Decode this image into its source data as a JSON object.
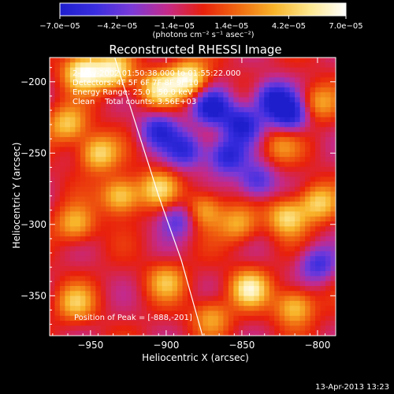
{
  "chart_data": {
    "type": "heatmap",
    "title": "Reconstructed RHESSI Image",
    "xlabel": "Heliocentric X (arcsec)",
    "ylabel": "Heliocentric Y (arcsec)",
    "xlim": [
      -977,
      -788
    ],
    "ylim": [
      -378,
      -183
    ],
    "x_ticks": [
      -950,
      -900,
      -850,
      -800
    ],
    "x_tick_labels": [
      "−950",
      "−900",
      "−850",
      "−800"
    ],
    "y_ticks": [
      -350,
      -300,
      -250,
      -200
    ],
    "y_tick_labels": [
      "−350",
      "−300",
      "−250",
      "−200"
    ],
    "colorbar": {
      "min": -7e-05,
      "max": 7e-05,
      "tick_values": [
        -7e-05,
        -4.2e-05,
        -1.4e-05,
        1.4e-05,
        4.2e-05,
        7e-05
      ],
      "tick_labels": [
        "−7.0e−05",
        "−4.2e−05",
        "−1.4e−05",
        "1.4e−05",
        "4.2e−05",
        "7.0e−05"
      ],
      "unit_label": "(photons cm⁻² s⁻¹ asec⁻²)",
      "colors": [
        "#1e1ecc",
        "#3a2ee0",
        "#7a3ad8",
        "#c42a8a",
        "#e8200c",
        "#f06a10",
        "#f8b42a",
        "#fde890",
        "#ffffff"
      ]
    },
    "annotations": [
      "2-May-2002 01:50:38.000 to 01:55:22.000",
      "Detectors: 4F 5F 6F 7F 8F 9F 10",
      "Energy Range: 25.0 - 50.0 keV",
      "Clean    Total counts: 3.56E+03"
    ],
    "peak_label": "Position of Peak = [-888,-201]",
    "peak_position": [
      -888,
      -201
    ],
    "limb_curve": [
      [
        -934,
        -183
      ],
      [
        -920,
        -230
      ],
      [
        -905,
        -280
      ],
      [
        -890,
        -325
      ],
      [
        -876,
        -378
      ]
    ],
    "hot_spots": [
      {
        "x": -955,
        "y": -193,
        "value": 7e-05
      },
      {
        "x": -935,
        "y": -193,
        "value": 6.5e-05
      },
      {
        "x": -885,
        "y": -198,
        "value": 7e-05
      },
      {
        "x": -905,
        "y": -205,
        "value": 5.5e-05
      },
      {
        "x": -965,
        "y": -230,
        "value": 5e-05
      },
      {
        "x": -945,
        "y": -250,
        "value": 5.5e-05
      },
      {
        "x": -930,
        "y": -280,
        "value": 5.8e-05
      },
      {
        "x": -960,
        "y": -300,
        "value": 4.5e-05
      },
      {
        "x": -905,
        "y": -275,
        "value": 4.8e-05
      },
      {
        "x": -875,
        "y": -290,
        "value": 4.5e-05
      },
      {
        "x": -852,
        "y": -300,
        "value": 4e-05
      },
      {
        "x": -820,
        "y": -295,
        "value": 5.5e-05
      },
      {
        "x": -800,
        "y": -285,
        "value": 5e-05
      },
      {
        "x": -845,
        "y": -345,
        "value": 6e-05
      },
      {
        "x": -815,
        "y": -358,
        "value": 5.2e-05
      },
      {
        "x": -900,
        "y": -340,
        "value": 4e-05
      },
      {
        "x": -870,
        "y": -365,
        "value": 3.8e-05
      },
      {
        "x": -960,
        "y": -355,
        "value": 4.2e-05
      },
      {
        "x": -800,
        "y": -215,
        "value": 3.8e-05
      },
      {
        "x": -825,
        "y": -245,
        "value": 3e-05
      }
    ],
    "cold_spots": [
      {
        "x": -870,
        "y": -218,
        "value": -6.5e-05
      },
      {
        "x": -850,
        "y": -230,
        "value": -6e-05
      },
      {
        "x": -830,
        "y": -212,
        "value": -6.2e-05
      },
      {
        "x": -860,
        "y": -252,
        "value": -5.8e-05
      },
      {
        "x": -818,
        "y": -223,
        "value": -6e-05
      },
      {
        "x": -887,
        "y": -248,
        "value": -5e-05
      },
      {
        "x": -905,
        "y": -234,
        "value": -5.2e-05
      },
      {
        "x": -840,
        "y": -270,
        "value": -4.8e-05
      },
      {
        "x": -800,
        "y": -328,
        "value": -4.5e-05
      },
      {
        "x": -892,
        "y": -296,
        "value": -4e-05
      }
    ]
  },
  "footer": {
    "date": "13-Apr-2013 13:23"
  }
}
